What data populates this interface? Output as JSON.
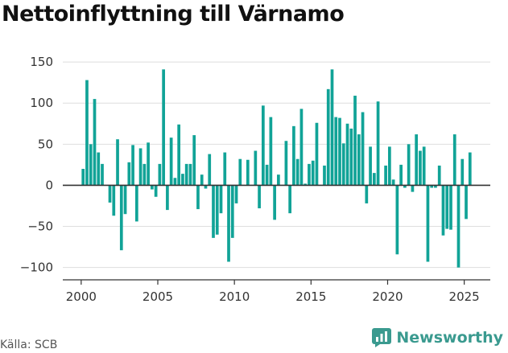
{
  "header": {
    "title": "Nettoinflyttning till Värnamo"
  },
  "footer": {
    "source": "Källa: SCB",
    "brand": "Newsworthy"
  },
  "colors": {
    "bar": "#11a397",
    "grid": "#dedede",
    "axis": "#333333",
    "brand": "#3a9a8f"
  },
  "chart_data": {
    "type": "bar",
    "title": "Nettoinflyttning till Värnamo",
    "xlabel": "",
    "ylabel": "",
    "ylim": [
      -115,
      155
    ],
    "xlim": [
      1998.8,
      2026.7
    ],
    "yticks": [
      150,
      100,
      50,
      0,
      -50,
      -100
    ],
    "ytick_labels": [
      "150",
      "100",
      "50",
      "0",
      "−50",
      "−100"
    ],
    "xticks": [
      2000,
      2005,
      2010,
      2015,
      2020,
      2025
    ],
    "xtick_labels": [
      "2000",
      "2005",
      "2010",
      "2015",
      "2020",
      "2025"
    ],
    "grid": "horizontal",
    "start_year": 2000,
    "periods_per_year": 4,
    "values": [
      20,
      128,
      50,
      105,
      40,
      26,
      0,
      -21,
      -37,
      56,
      -79,
      -35,
      28,
      49,
      -44,
      45,
      26,
      52,
      -5,
      -14,
      26,
      141,
      -30,
      58,
      9,
      74,
      14,
      26,
      26,
      61,
      -29,
      13,
      -4,
      38,
      -64,
      -60,
      -34,
      40,
      -93,
      -64,
      -22,
      32,
      0,
      31,
      0,
      42,
      -28,
      97,
      25,
      83,
      -42,
      13,
      0,
      54,
      -34,
      72,
      32,
      93,
      2,
      26,
      30,
      76,
      0,
      24,
      117,
      141,
      83,
      82,
      51,
      75,
      69,
      109,
      62,
      89,
      -22,
      47,
      15,
      102,
      0,
      24,
      47,
      7,
      -84,
      25,
      -3,
      50,
      -8,
      62,
      42,
      47,
      -93,
      -3,
      -3,
      24,
      -61,
      -53,
      -54,
      62,
      -100,
      32,
      -41,
      40
    ]
  }
}
